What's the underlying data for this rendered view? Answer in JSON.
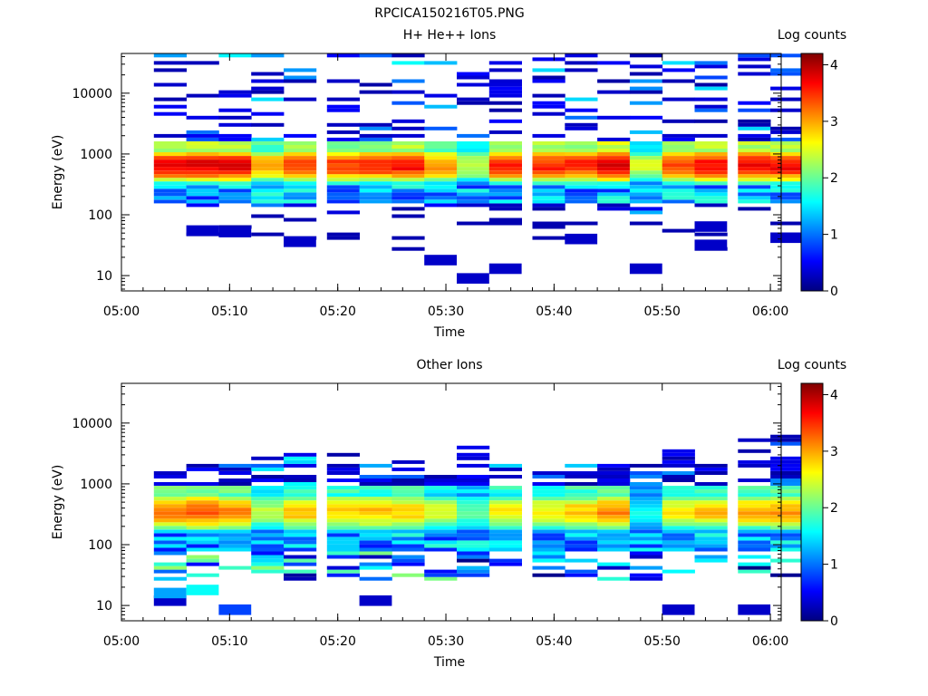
{
  "page_title": "RPCICA150216T05.PNG",
  "colorbar_gradient": [
    "#00007f",
    "#0000ff",
    "#007fff",
    "#00ffff",
    "#7fff7f",
    "#ffff00",
    "#ff7f00",
    "#ff0000",
    "#7f0000"
  ],
  "chart_data": [
    {
      "type": "heatmap",
      "title": "H+ He++ Ions",
      "xlabel": "Time",
      "ylabel": "Energy (eV)",
      "y_scale": "log",
      "xlim": [
        "05:00",
        "06:01"
      ],
      "ylim": [
        5.6,
        45000
      ],
      "xticks": [
        "05:00",
        "05:10",
        "05:20",
        "05:30",
        "05:40",
        "05:50",
        "06:00"
      ],
      "yticks": [
        "10",
        "100",
        "1000",
        "10000"
      ],
      "colorbar": {
        "label": "Log counts",
        "range": [
          0,
          4.2
        ],
        "ticks": [
          "0",
          "1",
          "2",
          "3",
          "4"
        ]
      },
      "time_bins": [
        "05:03",
        "05:06",
        "05:09",
        "05:12",
        "05:15",
        "05:19",
        "05:22",
        "05:25",
        "05:28",
        "05:31",
        "05:34",
        "05:38",
        "05:41",
        "05:44",
        "05:47",
        "05:50",
        "05:53",
        "05:57",
        "06:00"
      ],
      "core_band_eV": [
        300,
        1200
      ],
      "peak_log_counts": [
        3.9,
        4.0,
        3.9,
        3.2,
        3.6,
        3.6,
        3.7,
        3.8,
        3.3,
        2.6,
        3.7,
        3.7,
        3.7,
        4.0,
        2.6,
        3.6,
        3.8,
        3.9,
        3.9
      ],
      "sparse_bins": [
        {
          "t": 8,
          "e": 18,
          "v": 0.3
        },
        {
          "t": 9,
          "e": 9,
          "v": 0.3
        },
        {
          "t": 10,
          "e": 13,
          "v": 0.3
        },
        {
          "t": 14,
          "e": 13,
          "v": 0.3
        },
        {
          "t": 1,
          "e": 55,
          "v": 0.3
        },
        {
          "t": 2,
          "e": 52,
          "v": 0.3
        },
        {
          "t": 4,
          "e": 36,
          "v": 0.3
        },
        {
          "t": 16,
          "e": 32,
          "v": 0.3
        },
        {
          "t": 18,
          "e": 42,
          "v": 0.3
        },
        {
          "t": 12,
          "e": 40,
          "v": 0.3
        },
        {
          "t": 16,
          "e": 64,
          "v": 0.3
        }
      ]
    },
    {
      "type": "heatmap",
      "title": "Other Ions",
      "xlabel": "Time",
      "ylabel": "Energy (eV)",
      "y_scale": "log",
      "xlim": [
        "05:00",
        "06:01"
      ],
      "ylim": [
        5.6,
        45000
      ],
      "xticks": [
        "05:00",
        "05:10",
        "05:20",
        "05:30",
        "05:40",
        "05:50",
        "06:00"
      ],
      "yticks": [
        "10",
        "100",
        "1000",
        "10000"
      ],
      "colorbar": {
        "label": "Log counts",
        "range": [
          0,
          4.2
        ],
        "ticks": [
          "0",
          "1",
          "2",
          "3",
          "4"
        ]
      },
      "time_bins": [
        "05:03",
        "05:06",
        "05:09",
        "05:12",
        "05:15",
        "05:19",
        "05:22",
        "05:25",
        "05:28",
        "05:31",
        "05:34",
        "05:38",
        "05:41",
        "05:44",
        "05:47",
        "05:50",
        "05:53",
        "05:57",
        "06:00"
      ],
      "core_band_eV": [
        150,
        700
      ],
      "peak_log_counts": [
        3.4,
        3.5,
        3.3,
        2.5,
        3.0,
        3.0,
        3.0,
        3.0,
        2.6,
        2.2,
        2.8,
        2.8,
        3.0,
        3.3,
        1.8,
        2.8,
        3.0,
        3.1,
        3.2
      ],
      "upper_extent_eV": [
        2200,
        2000,
        2100,
        2900,
        3500,
        3600,
        2000,
        2200,
        1400,
        4200,
        2800,
        1900,
        2000,
        2000,
        2800,
        3400,
        2000,
        5000,
        5800
      ],
      "sparse_bins": [
        {
          "t": 0,
          "e": 12,
          "v": 0.3
        },
        {
          "t": 2,
          "e": 8.5,
          "v": 0.8
        },
        {
          "t": 6,
          "e": 12,
          "v": 0.3
        },
        {
          "t": 15,
          "e": 8.5,
          "v": 0.3
        },
        {
          "t": 17,
          "e": 8.5,
          "v": 0.3
        },
        {
          "t": 0,
          "e": 16,
          "v": 1.2
        },
        {
          "t": 1,
          "e": 18,
          "v": 1.6
        }
      ]
    }
  ]
}
